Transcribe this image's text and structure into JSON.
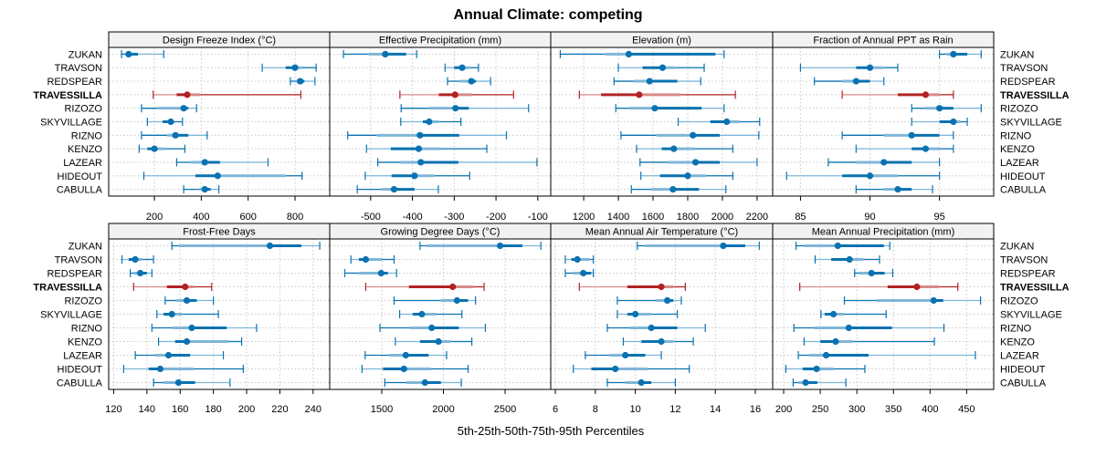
{
  "chart_data": {
    "type": "dotplot-percentiles",
    "title": "Annual Climate: competing",
    "xlabel": "5th-25th-50th-75th-95th Percentiles",
    "rows": [
      "ZUKAN",
      "TRAVSON",
      "REDSPEAR",
      "TRAVESSILLA",
      "RIZOZO",
      "SKYVILLAGE",
      "RIZNO",
      "KENZO",
      "LAZEAR",
      "HIDEOUT",
      "CABULLA"
    ],
    "highlight_row": "TRAVESSILLA",
    "colors": {
      "normal": "#0a72b0",
      "normal_light": "#7fb6d8",
      "highlight": "#b22222",
      "highlight_light": "#d98a8a",
      "grid": "#c8c8c8",
      "strip_bg": "#f2f2f2"
    },
    "panels": [
      {
        "title": "Design Freeze Index (°C)",
        "xlim": [
          5,
          948
        ],
        "ticks": [
          200,
          400,
          600,
          800
        ],
        "values": [
          [
            60,
            75,
            90,
            130,
            240
          ],
          [
            660,
            760,
            800,
            830,
            890
          ],
          [
            780,
            800,
            822,
            840,
            885
          ],
          [
            195,
            295,
            340,
            395,
            825
          ],
          [
            145,
            215,
            325,
            345,
            380
          ],
          [
            170,
            235,
            270,
            285,
            320
          ],
          [
            145,
            255,
            290,
            345,
            425
          ],
          [
            135,
            170,
            200,
            245,
            330
          ],
          [
            295,
            355,
            415,
            480,
            685
          ],
          [
            155,
            375,
            470,
            760,
            830
          ],
          [
            325,
            390,
            415,
            440,
            475
          ]
        ]
      },
      {
        "title": "Effective Precipitation (mm)",
        "xlim": [
          -598,
          -69
        ],
        "ticks": [
          -500,
          -400,
          -300,
          -200,
          -100
        ],
        "values": [
          [
            -565,
            -505,
            -465,
            -415,
            -390
          ],
          [
            -322,
            -300,
            -281,
            -262,
            -242
          ],
          [
            -316,
            -286,
            -259,
            -248,
            -213
          ],
          [
            -430,
            -337,
            -298,
            -258,
            -158
          ],
          [
            -427,
            -360,
            -297,
            -265,
            -122
          ],
          [
            -428,
            -375,
            -360,
            -337,
            -284
          ],
          [
            -555,
            -485,
            -382,
            -288,
            -175
          ],
          [
            -510,
            -452,
            -385,
            -333,
            -222
          ],
          [
            -483,
            -430,
            -380,
            -290,
            -102
          ],
          [
            -513,
            -450,
            -395,
            -348,
            -263
          ],
          [
            -532,
            -475,
            -444,
            -395,
            -338
          ]
        ]
      },
      {
        "title": "Elevation (m)",
        "xlim": [
          1010,
          2290
        ],
        "ticks": [
          1200,
          1400,
          1600,
          1800,
          2000,
          2200
        ],
        "values": [
          [
            1065,
            1325,
            1460,
            1960,
            2010
          ],
          [
            1400,
            1540,
            1655,
            1725,
            1895
          ],
          [
            1375,
            1490,
            1580,
            1740,
            1875
          ],
          [
            1175,
            1300,
            1520,
            1760,
            2075
          ],
          [
            1385,
            1465,
            1610,
            1880,
            2010
          ],
          [
            1745,
            1930,
            2025,
            2100,
            2215
          ],
          [
            1415,
            1620,
            1830,
            1985,
            2210
          ],
          [
            1505,
            1650,
            1720,
            1840,
            2060
          ],
          [
            1525,
            1685,
            1845,
            1985,
            2200
          ],
          [
            1530,
            1640,
            1800,
            1905,
            2060
          ],
          [
            1475,
            1590,
            1715,
            1865,
            2020
          ]
        ]
      },
      {
        "title": "Fraction of Annual PPT as Rain",
        "xlim": [
          83.0,
          98.9
        ],
        "ticks": [
          85,
          90,
          95
        ],
        "values": [
          [
            95,
            95.5,
            96,
            97,
            98
          ],
          [
            85,
            89,
            90,
            91,
            92
          ],
          [
            86,
            88,
            89,
            90,
            91
          ],
          [
            88,
            92,
            94,
            95,
            96
          ],
          [
            93,
            94,
            95,
            96,
            98
          ],
          [
            93,
            95,
            96,
            96.5,
            97
          ],
          [
            88,
            91,
            93,
            95,
            96
          ],
          [
            89,
            93,
            94,
            95,
            96
          ],
          [
            87,
            89,
            91,
            93,
            95
          ],
          [
            84,
            88,
            90,
            92,
            95
          ],
          [
            89,
            91,
            92,
            93,
            94.5
          ]
        ]
      },
      {
        "title": "Frost-Free Days",
        "xlim": [
          117,
          250
        ],
        "ticks": [
          120,
          140,
          160,
          180,
          200,
          220,
          240
        ],
        "values": [
          [
            155,
            159,
            214,
            233,
            244
          ],
          [
            125,
            129,
            133,
            137,
            144
          ],
          [
            130,
            132,
            136,
            140,
            143
          ],
          [
            132,
            152,
            163,
            168,
            179
          ],
          [
            151,
            158,
            164,
            170,
            180
          ],
          [
            146,
            150,
            155,
            161,
            183
          ],
          [
            143,
            155,
            167,
            188,
            206
          ],
          [
            147,
            157,
            164,
            189,
            197
          ],
          [
            133,
            145,
            153,
            166,
            186
          ],
          [
            126,
            141,
            148,
            168,
            198
          ],
          [
            144,
            150,
            159,
            169,
            190
          ]
        ]
      },
      {
        "title": "Growing Degree Days (°C)",
        "xlim": [
          1078,
          2870
        ],
        "ticks": [
          1500,
          2000,
          2500
        ],
        "values": [
          [
            1810,
            1860,
            2460,
            2640,
            2790
          ],
          [
            1250,
            1315,
            1370,
            1500,
            1600
          ],
          [
            1200,
            1310,
            1495,
            1550,
            1620
          ],
          [
            1370,
            1720,
            2075,
            2245,
            2330
          ],
          [
            1600,
            1980,
            2110,
            2200,
            2260
          ],
          [
            1645,
            1750,
            1825,
            1940,
            2150
          ],
          [
            1485,
            1725,
            1905,
            2125,
            2340
          ],
          [
            1610,
            1810,
            1960,
            2055,
            2230
          ],
          [
            1365,
            1560,
            1695,
            1880,
            2025
          ],
          [
            1340,
            1510,
            1680,
            1900,
            2200
          ],
          [
            1525,
            1700,
            1850,
            1980,
            2145
          ]
        ]
      },
      {
        "title": "Mean Annual Air Temperature (°C)",
        "xlim": [
          5.77,
          16.87
        ],
        "ticks": [
          6,
          8,
          10,
          12,
          14,
          16
        ],
        "values": [
          [
            10.1,
            10.5,
            14.4,
            15.5,
            16.2
          ],
          [
            6.5,
            6.8,
            7.1,
            7.7,
            7.9
          ],
          [
            6.5,
            6.9,
            7.4,
            7.8,
            7.9
          ],
          [
            7.2,
            9.6,
            11.3,
            11.9,
            12.5
          ],
          [
            9.1,
            11.0,
            11.6,
            11.9,
            12.3
          ],
          [
            9.1,
            9.6,
            10.0,
            10.8,
            12.1
          ],
          [
            8.6,
            9.7,
            10.8,
            12.1,
            13.5
          ],
          [
            9.4,
            10.3,
            11.3,
            11.9,
            12.9
          ],
          [
            7.5,
            8.7,
            9.5,
            10.5,
            11.3
          ],
          [
            6.9,
            7.8,
            9.0,
            10.6,
            12.7
          ],
          [
            8.6,
            9.5,
            10.3,
            10.8,
            12.0
          ]
        ]
      },
      {
        "title": "Mean Annual Precipitation (mm)",
        "xlim": [
          185,
          487
        ],
        "ticks": [
          200,
          250,
          300,
          350,
          400,
          450
        ],
        "values": [
          [
            217,
            228,
            274,
            337,
            345
          ],
          [
            243,
            265,
            290,
            309,
            331
          ],
          [
            297,
            302,
            320,
            338,
            349
          ],
          [
            222,
            342,
            382,
            413,
            438
          ],
          [
            283,
            328,
            405,
            418,
            469
          ],
          [
            251,
            256,
            268,
            283,
            340
          ],
          [
            214,
            241,
            289,
            348,
            419
          ],
          [
            228,
            250,
            271,
            294,
            406
          ],
          [
            220,
            235,
            258,
            316,
            462
          ],
          [
            203,
            226,
            245,
            268,
            311
          ],
          [
            213,
            220,
            230,
            246,
            285
          ]
        ]
      }
    ]
  }
}
